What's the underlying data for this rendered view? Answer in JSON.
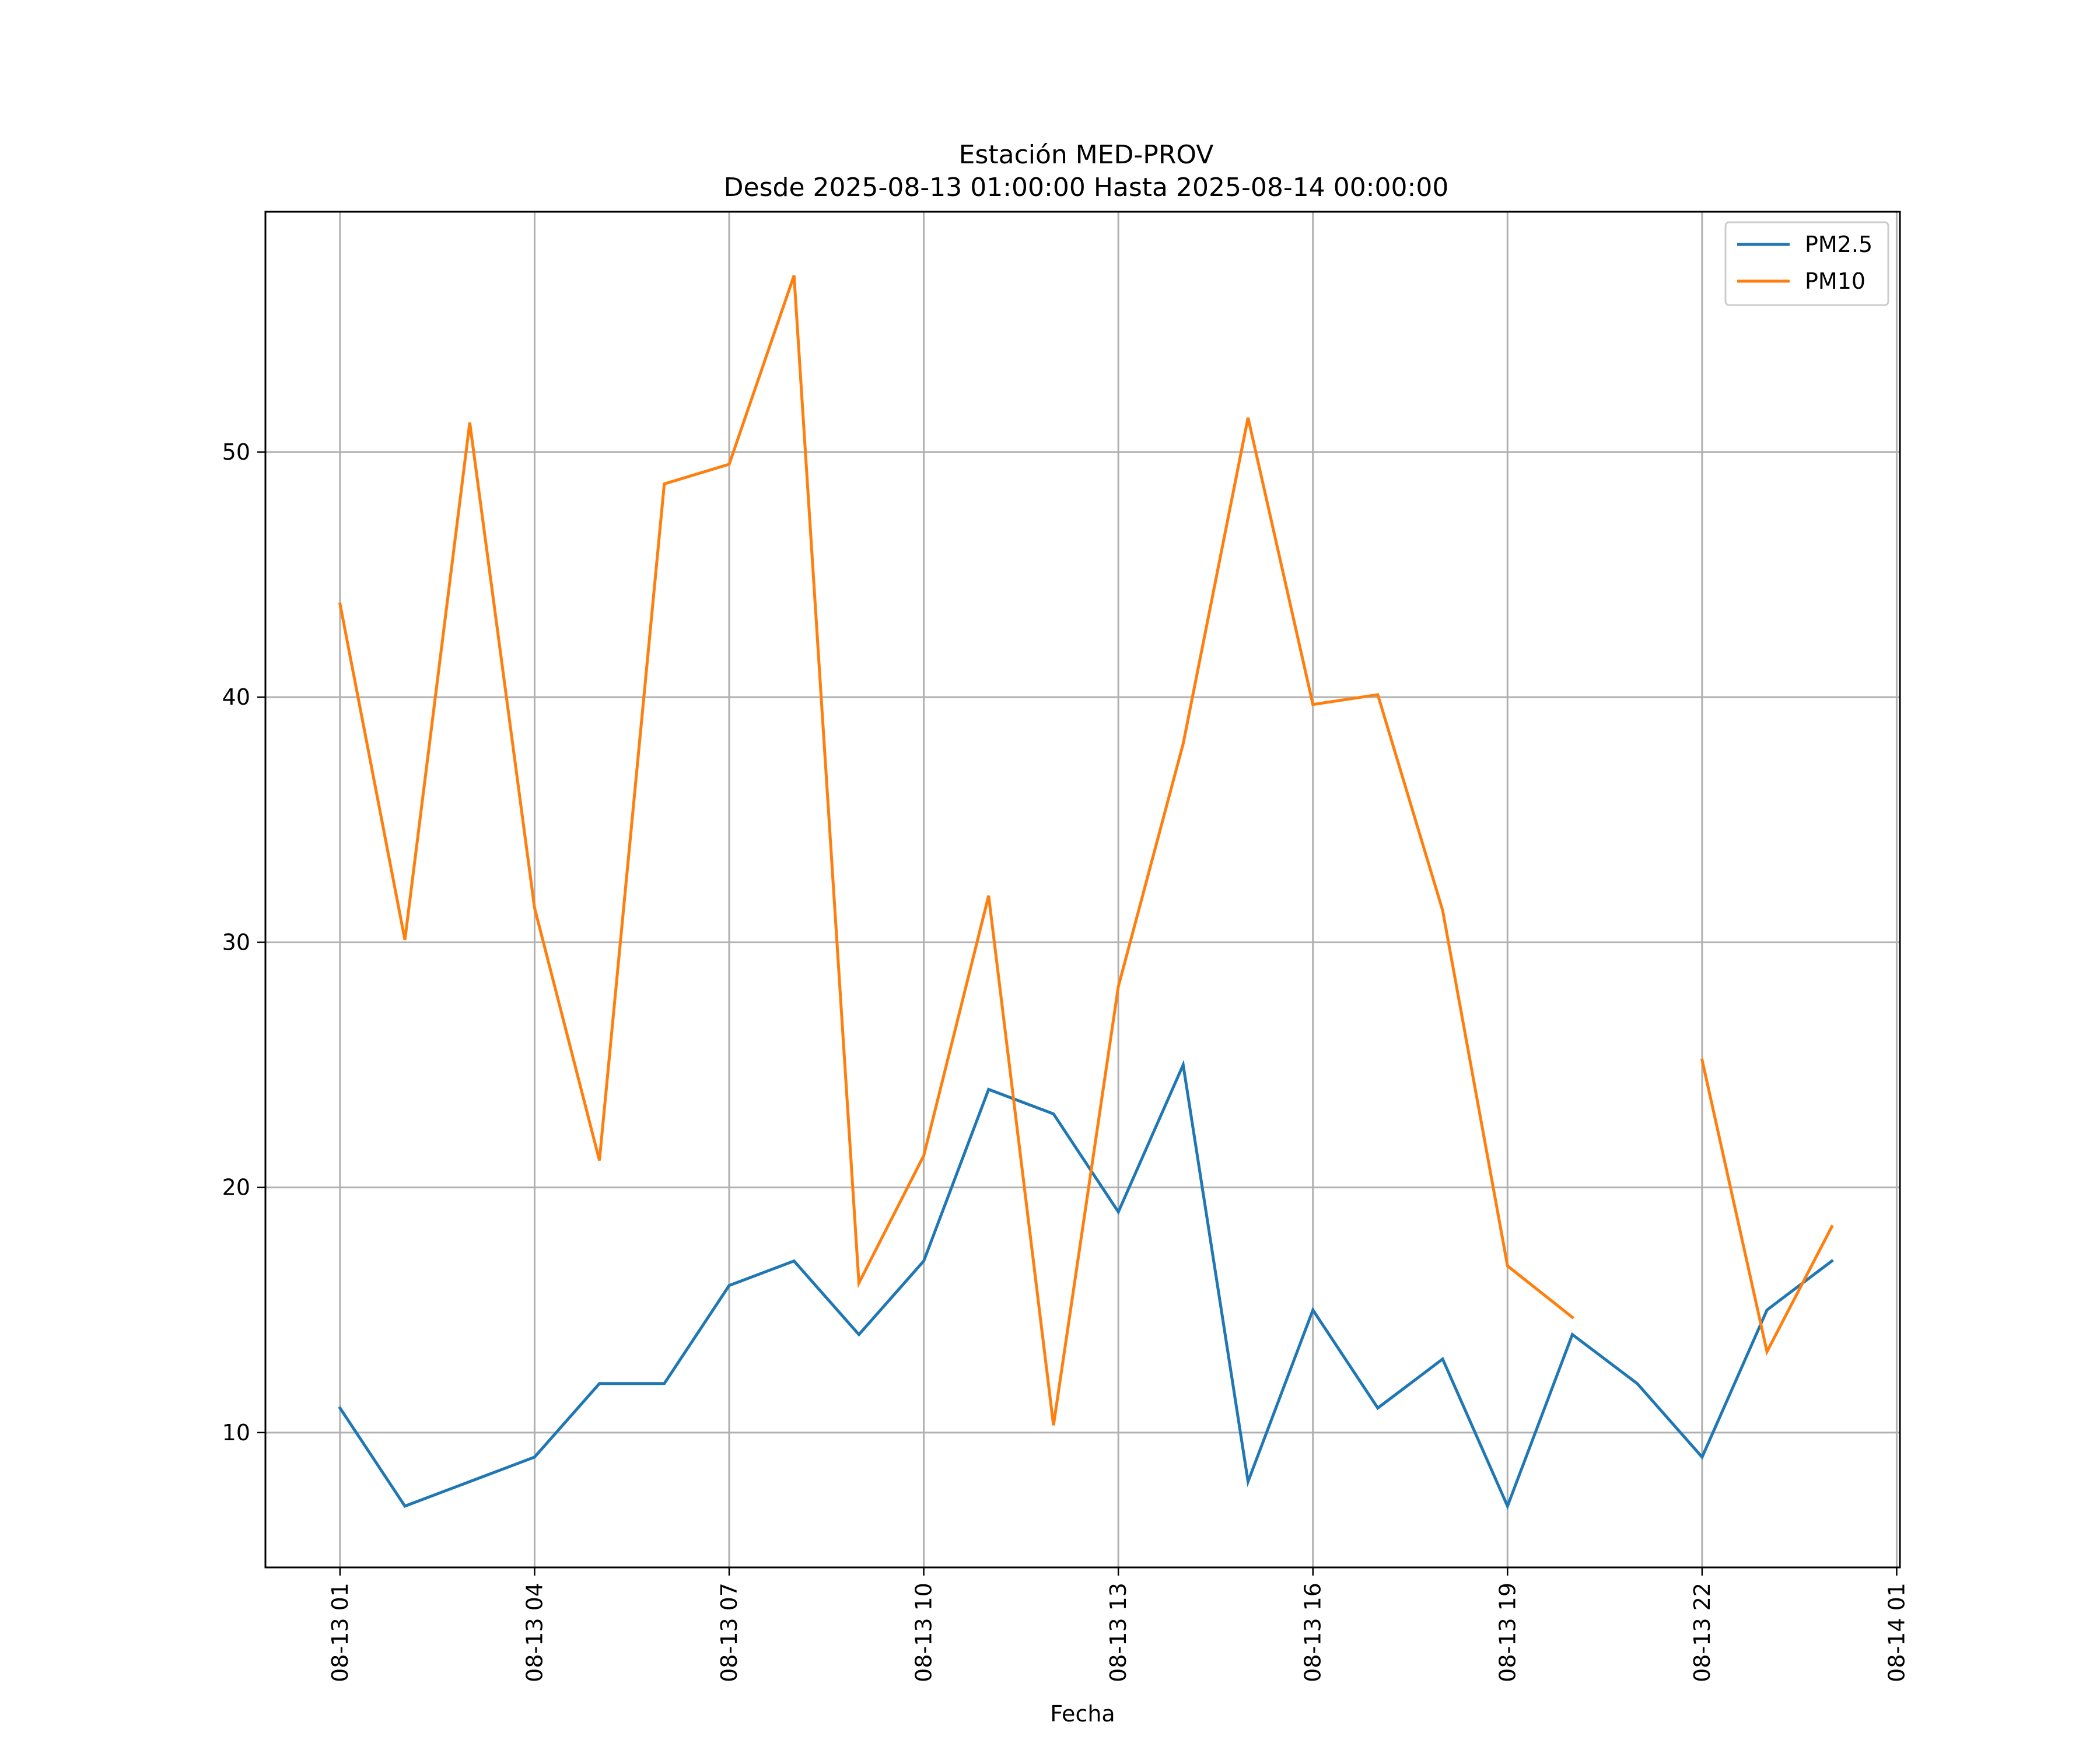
{
  "chart_data": {
    "type": "line",
    "title_line1": "Estación MED-PROV",
    "title_line2": "Desde 2025-08-13 01:00:00 Hasta 2025-08-14 00:00:00",
    "xlabel": "Fecha",
    "ylabel": "",
    "x_hours": [
      1,
      2,
      3,
      4,
      5,
      6,
      7,
      8,
      9,
      10,
      11,
      12,
      13,
      14,
      15,
      16,
      17,
      18,
      19,
      20,
      21,
      22,
      23,
      24
    ],
    "xlim": [
      -0.15,
      25.05
    ],
    "ylim": [
      4.5,
      59.8
    ],
    "x_ticks": [
      {
        "hour": 1,
        "label": "08-13 01"
      },
      {
        "hour": 4,
        "label": "08-13 04"
      },
      {
        "hour": 7,
        "label": "08-13 07"
      },
      {
        "hour": 10,
        "label": "08-13 10"
      },
      {
        "hour": 13,
        "label": "08-13 13"
      },
      {
        "hour": 16,
        "label": "08-13 16"
      },
      {
        "hour": 19,
        "label": "08-13 19"
      },
      {
        "hour": 22,
        "label": "08-13 22"
      },
      {
        "hour": 25,
        "label": "08-14 01"
      }
    ],
    "y_ticks": [
      {
        "value": 10,
        "label": "10"
      },
      {
        "value": 20,
        "label": "20"
      },
      {
        "value": 30,
        "label": "30"
      },
      {
        "value": 40,
        "label": "40"
      },
      {
        "value": 50,
        "label": "50"
      }
    ],
    "grid": true,
    "legend_position": "top-right",
    "series": [
      {
        "name": "PM2.5",
        "color": "#1f77b4",
        "values": [
          11,
          7,
          8,
          9,
          12,
          12,
          16,
          17,
          14,
          17,
          24,
          23,
          19,
          25,
          8,
          15,
          11,
          13,
          7,
          14,
          12,
          9,
          15,
          17
        ]
      },
      {
        "name": "PM10",
        "color": "#ff7f0e",
        "values": [
          43.8,
          30.1,
          51.2,
          31.4,
          21.1,
          48.7,
          49.5,
          57.2,
          16.1,
          21.3,
          31.9,
          10.3,
          28.2,
          38.1,
          51.4,
          39.7,
          40.1,
          31.3,
          16.8,
          14.7,
          null,
          25.2,
          13.3,
          18.4
        ]
      }
    ]
  }
}
